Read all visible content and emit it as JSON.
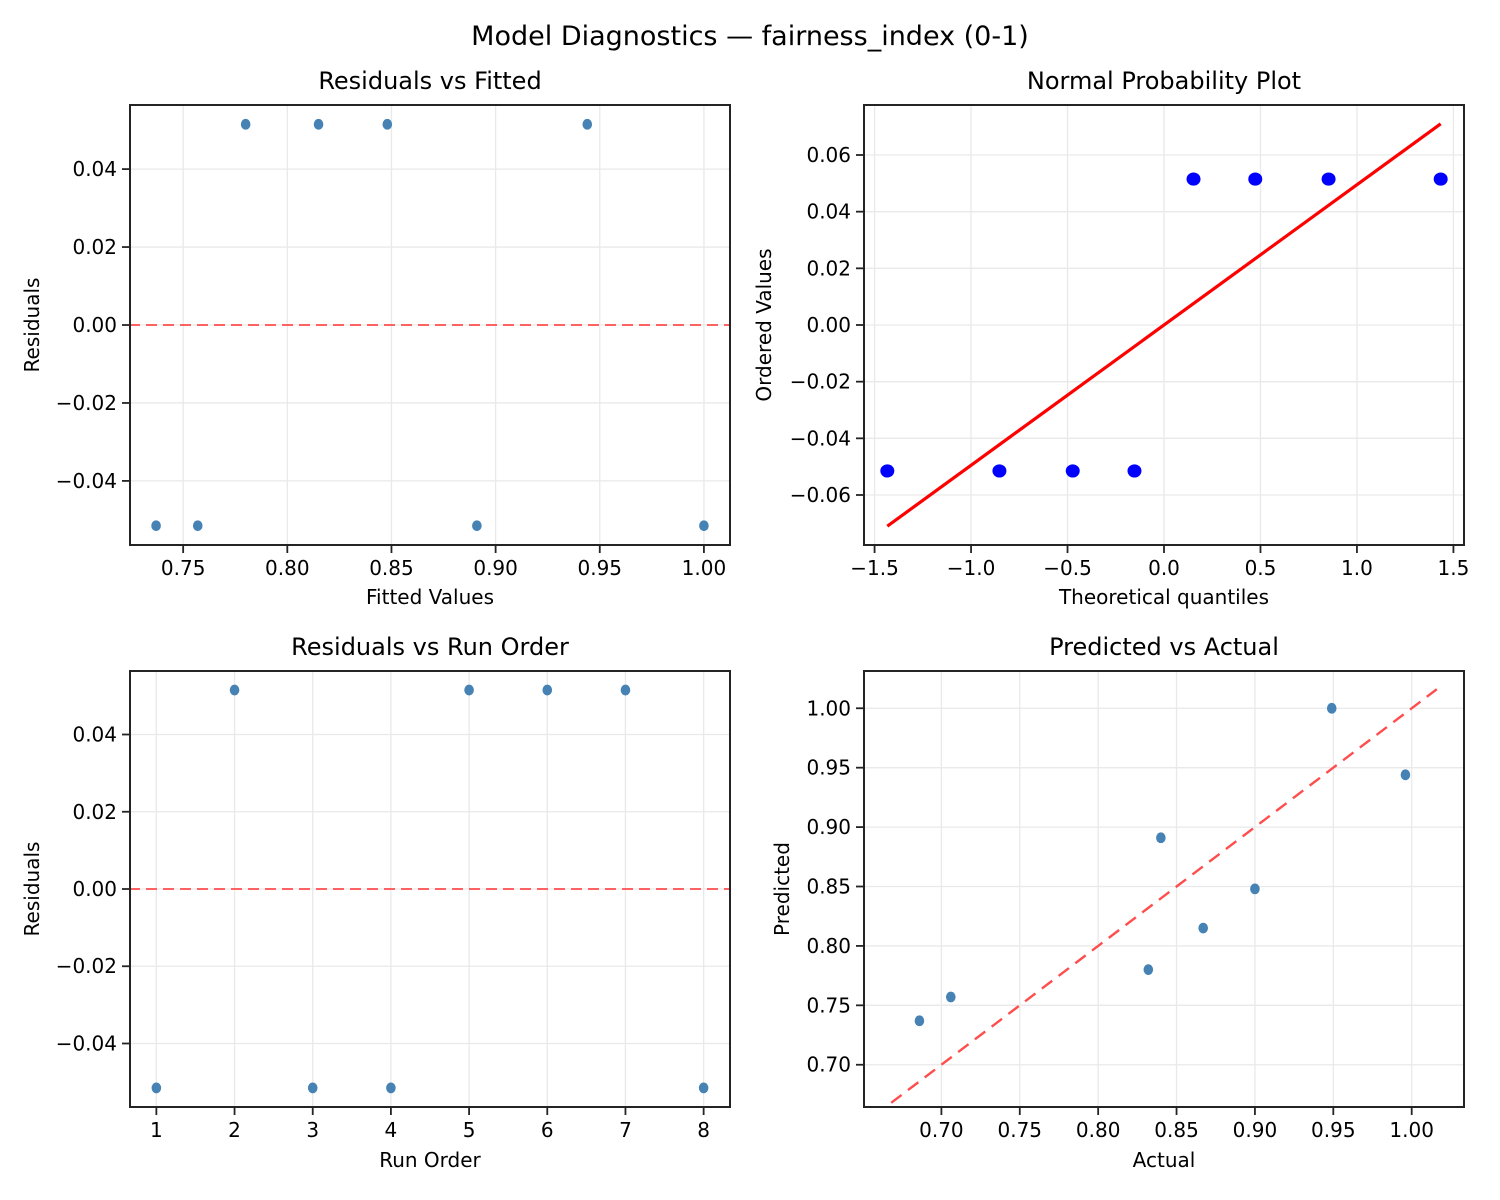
{
  "figure": {
    "title": "Model Diagnostics — fairness_index (0-1)",
    "background": "#ffffff"
  },
  "colors": {
    "grid": "#e9e9e9",
    "spine": "#242424",
    "tick": "#242424",
    "text": "#000000",
    "scatter_point": "#4682B4",
    "probplot_point": "#0000FF",
    "reference_red": "#FF0000",
    "reference_red_soft": "#FF4D4D"
  },
  "chart_data": [
    {
      "id": "residuals-vs-fitted",
      "type": "scatter",
      "title": "Residuals vs Fitted",
      "xlabel": "Fitted Values",
      "ylabel": "Residuals",
      "xlim": [
        0.724,
        1.013
      ],
      "ylim": [
        -0.0567,
        0.0567
      ],
      "grid": true,
      "xticks": {
        "values": [
          0.75,
          0.8,
          0.85,
          0.9,
          0.95,
          1.0
        ],
        "labels": [
          "0.75",
          "0.80",
          "0.85",
          "0.90",
          "0.95",
          "1.00"
        ]
      },
      "yticks": {
        "values": [
          -0.04,
          -0.02,
          0.0,
          0.02,
          0.04
        ],
        "labels": [
          "−0.04",
          "−0.02",
          "0.00",
          "0.02",
          "0.04"
        ]
      },
      "points": [
        [
          0.737,
          -0.0515
        ],
        [
          0.757,
          -0.0515
        ],
        [
          0.78,
          0.0515
        ],
        [
          0.815,
          0.0515
        ],
        [
          0.848,
          0.0515
        ],
        [
          0.891,
          -0.0515
        ],
        [
          0.944,
          0.0515
        ],
        [
          1.0,
          -0.0515
        ]
      ],
      "marker": {
        "color": "#4682B4",
        "rx": 4.8,
        "ry": 5.4
      },
      "ref_lines": [
        {
          "name": "zero-line",
          "y": 0,
          "color": "#FF4D4D",
          "width": 1.8,
          "dash": "11 6"
        }
      ]
    },
    {
      "id": "normal-probability-plot",
      "type": "scatter",
      "title": "Normal Probability Plot",
      "xlabel": "Theoretical quantiles",
      "ylabel": "Ordered Values",
      "xlim": [
        -1.56,
        1.56
      ],
      "ylim": [
        -0.078,
        0.078
      ],
      "grid": true,
      "xticks": {
        "values": [
          -1.5,
          -1.0,
          -0.5,
          0.0,
          0.5,
          1.0,
          1.5
        ],
        "labels": [
          "−1.5",
          "−1.0",
          "−0.5",
          "0.0",
          "0.5",
          "1.0",
          "1.5"
        ]
      },
      "yticks": {
        "values": [
          -0.06,
          -0.04,
          -0.02,
          0.0,
          0.02,
          0.04,
          0.06
        ],
        "labels": [
          "−0.06",
          "−0.04",
          "−0.02",
          "0.00",
          "0.02",
          "0.04",
          "0.06"
        ]
      },
      "points": [
        [
          -1.434,
          -0.0515
        ],
        [
          -0.853,
          -0.0515
        ],
        [
          -0.473,
          -0.0515
        ],
        [
          -0.153,
          -0.0515
        ],
        [
          0.153,
          0.0515
        ],
        [
          0.473,
          0.0515
        ],
        [
          0.853,
          0.0515
        ],
        [
          1.434,
          0.0515
        ]
      ],
      "marker": {
        "color": "#0000FF",
        "rx": 7,
        "ry": 6.6
      },
      "ref_lines": [
        {
          "name": "fit-line",
          "x1": -1.434,
          "y1": -0.071,
          "x2": 1.434,
          "y2": 0.071,
          "color": "#FF0000",
          "width": 3.2,
          "dash": null
        }
      ]
    },
    {
      "id": "residuals-vs-run-order",
      "type": "scatter",
      "title": "Residuals vs Run Order",
      "xlabel": "Run Order",
      "ylabel": "Residuals",
      "xlim": [
        0.65,
        8.35
      ],
      "ylim": [
        -0.0567,
        0.0567
      ],
      "grid": true,
      "xticks": {
        "values": [
          1,
          2,
          3,
          4,
          5,
          6,
          7,
          8
        ],
        "labels": [
          "1",
          "2",
          "3",
          "4",
          "5",
          "6",
          "7",
          "8"
        ]
      },
      "yticks": {
        "values": [
          -0.04,
          -0.02,
          0.0,
          0.02,
          0.04
        ],
        "labels": [
          "−0.04",
          "−0.02",
          "0.00",
          "0.02",
          "0.04"
        ]
      },
      "points": [
        [
          1,
          -0.0515
        ],
        [
          2,
          0.0515
        ],
        [
          3,
          -0.0515
        ],
        [
          4,
          -0.0515
        ],
        [
          5,
          0.0515
        ],
        [
          6,
          0.0515
        ],
        [
          7,
          0.0515
        ],
        [
          8,
          -0.0515
        ]
      ],
      "marker": {
        "color": "#4682B4",
        "rx": 4.8,
        "ry": 5.4
      },
      "ref_lines": [
        {
          "name": "zero-line",
          "y": 0,
          "color": "#FF4D4D",
          "width": 1.8,
          "dash": "11 6"
        }
      ]
    },
    {
      "id": "predicted-vs-actual",
      "type": "scatter",
      "title": "Predicted vs Actual",
      "xlabel": "Actual",
      "ylabel": "Predicted",
      "xlim": [
        0.65,
        1.034
      ],
      "ylim": [
        0.6636,
        1.0322
      ],
      "grid": true,
      "xticks": {
        "values": [
          0.7,
          0.75,
          0.8,
          0.85,
          0.9,
          0.95,
          1.0
        ],
        "labels": [
          "0.70",
          "0.75",
          "0.80",
          "0.85",
          "0.90",
          "0.95",
          "1.00"
        ]
      },
      "yticks": {
        "values": [
          0.7,
          0.75,
          0.8,
          0.85,
          0.9,
          0.95,
          1.0
        ],
        "labels": [
          "0.70",
          "0.75",
          "0.80",
          "0.85",
          "0.90",
          "0.95",
          "1.00"
        ]
      },
      "points": [
        [
          0.686,
          0.737
        ],
        [
          0.706,
          0.757
        ],
        [
          0.832,
          0.78
        ],
        [
          0.84,
          0.891
        ],
        [
          0.867,
          0.815
        ],
        [
          0.9,
          0.848
        ],
        [
          0.949,
          1.0
        ],
        [
          0.996,
          0.944
        ]
      ],
      "marker": {
        "color": "#4682B4",
        "rx": 4.8,
        "ry": 5.4
      },
      "ref_lines": [
        {
          "name": "identity-line",
          "x1": 0.668,
          "y1": 0.668,
          "x2": 1.016,
          "y2": 1.016,
          "color": "#FF4D4D",
          "width": 2.4,
          "dash": "13 8"
        }
      ]
    }
  ]
}
